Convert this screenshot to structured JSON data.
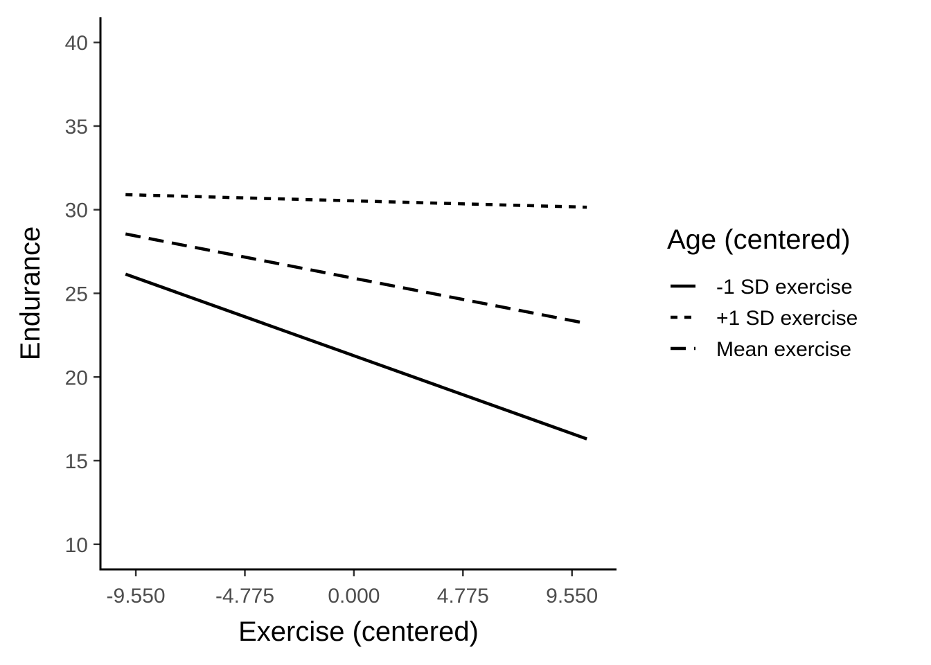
{
  "chart_data": {
    "type": "line",
    "xlabel": "Exercise (centered)",
    "ylabel": "Endurance",
    "x_ticks": [
      -9.55,
      -4.775,
      0,
      4.775,
      9.55
    ],
    "x_tick_labels": [
      "-9.550",
      "-4.775",
      "0.000",
      "4.775",
      "9.550"
    ],
    "y_ticks": [
      10,
      15,
      20,
      25,
      30,
      35,
      40
    ],
    "y_tick_labels": [
      "10",
      "15",
      "20",
      "25",
      "30",
      "35",
      "40"
    ],
    "xlim": [
      -11.1,
      11.5
    ],
    "ylim": [
      8.5,
      41.5
    ],
    "grid": false,
    "legend": {
      "title": "Age (centered)",
      "placement": "right"
    },
    "series": [
      {
        "name": "-1 SD exercise",
        "line_style": "solid",
        "color": "#000000",
        "x": [
          -10.0,
          10.2
        ],
        "y": [
          26.15,
          16.3
        ]
      },
      {
        "name": "+1 SD exercise",
        "line_style": "dotted",
        "color": "#000000",
        "x": [
          -10.0,
          10.2
        ],
        "y": [
          30.9,
          30.15
        ]
      },
      {
        "name": "Mean exercise",
        "line_style": "dashed",
        "color": "#000000",
        "x": [
          -10.0,
          10.2
        ],
        "y": [
          28.55,
          23.2
        ]
      }
    ]
  }
}
